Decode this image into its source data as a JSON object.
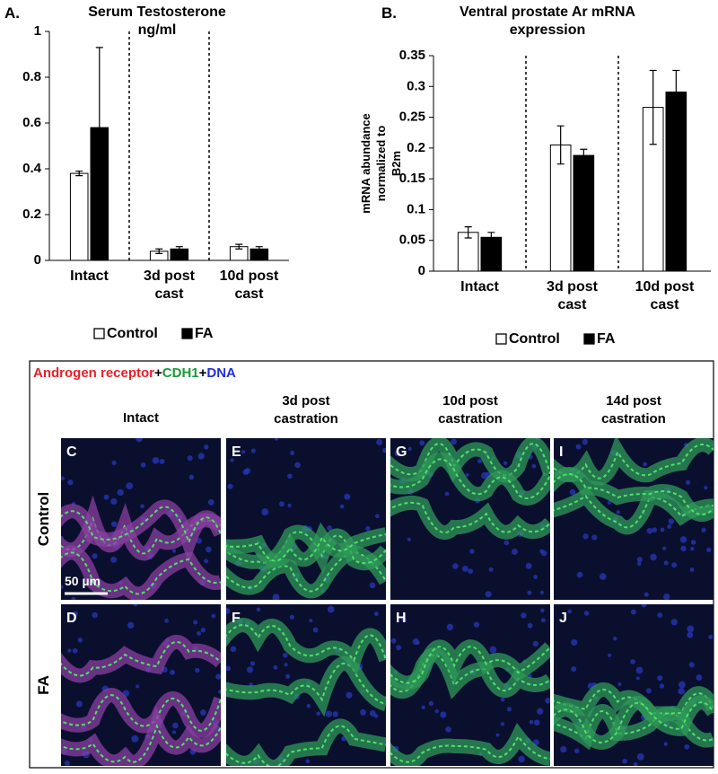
{
  "chart_data": [
    {
      "type": "bar",
      "panel_label": "A.",
      "title": "Serum Testosterone ng/ml",
      "categories": [
        "Intact",
        "3d post cast",
        "10d post cast"
      ],
      "series": [
        {
          "name": "Control",
          "color": "#ffffff",
          "values": [
            0.38,
            0.04,
            0.06
          ],
          "errors": [
            0.01,
            0.01,
            0.01
          ]
        },
        {
          "name": "FA",
          "color": "#000000",
          "values": [
            0.58,
            0.05,
            0.05
          ],
          "errors": [
            0.35,
            0.01,
            0.01
          ]
        }
      ],
      "ylim": [
        0,
        1
      ],
      "yticks": [
        0,
        0.2,
        0.4,
        0.6,
        0.8,
        1
      ]
    },
    {
      "type": "bar",
      "panel_label": "B.",
      "title": "Ventral prostate Ar mRNA expression",
      "ylabel": "mRNA abundance normalized to B2m",
      "categories": [
        "Intact",
        "3d post cast",
        "10d post cast"
      ],
      "series": [
        {
          "name": "Control",
          "color": "#ffffff",
          "values": [
            0.063,
            0.205,
            0.266
          ],
          "errors": [
            0.009,
            0.031,
            0.06
          ]
        },
        {
          "name": "FA",
          "color": "#000000",
          "values": [
            0.055,
            0.188,
            0.291
          ],
          "errors": [
            0.008,
            0.01,
            0.035
          ]
        }
      ],
      "ylim": [
        0,
        0.35
      ],
      "yticks": [
        0,
        0.05,
        0.1,
        0.15,
        0.2,
        0.25,
        0.3,
        0.35
      ]
    }
  ],
  "micrograph": {
    "stain": [
      {
        "text": "Androgen receptor",
        "color": "#e8202a"
      },
      {
        "text": "+",
        "color": "#000000"
      },
      {
        "text": "CDH1",
        "color": "#1a9a3a"
      },
      {
        "text": "+",
        "color": "#000000"
      },
      {
        "text": "DNA",
        "color": "#1f2fd8"
      }
    ],
    "columns": [
      "Intact",
      "3d post castration",
      "10d post castration",
      "14d post castration"
    ],
    "rows": [
      "Control",
      "FA"
    ],
    "panel_letters": [
      [
        "C",
        "E",
        "G",
        "I"
      ],
      [
        "D",
        "F",
        "H",
        "J"
      ]
    ],
    "scale_bar": "50 µm"
  }
}
